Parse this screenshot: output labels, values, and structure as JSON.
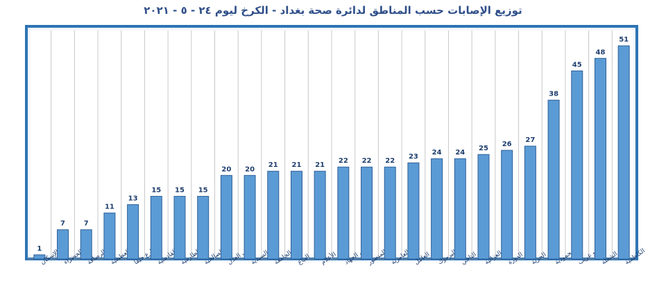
{
  "chart_data": {
    "type": "bar",
    "title": "توزيع الإصابات حسب المناطق لدائرة صحة بغداد - الكرخ ليوم ٢٤ - ٥ - ٢٠٢١",
    "xlabel": "",
    "ylabel": "",
    "ylim": [
      0,
      55
    ],
    "grid": "vertical",
    "legend": "none",
    "categories": [
      "الإسكان",
      "حي الخضراء",
      "الرصافة",
      "العطيفية",
      "شارع حيفا",
      "القادسية",
      "الطارمية",
      "الصالحية",
      "حي العدل",
      "السيدية",
      "حي الجامعة",
      "البياع",
      "الأعلام",
      "حي الجهاد",
      "المنصور",
      "العامرية",
      "حي العامل",
      "اليرموك",
      "التاجي",
      "الغزالية",
      "الدورة",
      "الحرية",
      "المحمودية",
      "ابو غريب",
      "الشعلة",
      "الكاظمية"
    ],
    "values": [
      1,
      7,
      7,
      11,
      13,
      15,
      15,
      15,
      20,
      20,
      21,
      21,
      21,
      22,
      22,
      22,
      23,
      24,
      24,
      25,
      26,
      27,
      38,
      45,
      48,
      51
    ],
    "colors": {
      "bar_fill": "#5b9bd5",
      "bar_edge": "#2e5f98",
      "frame": "#2e74b5",
      "grid": "#c8c8c8",
      "text": "#1f3e6e"
    }
  }
}
